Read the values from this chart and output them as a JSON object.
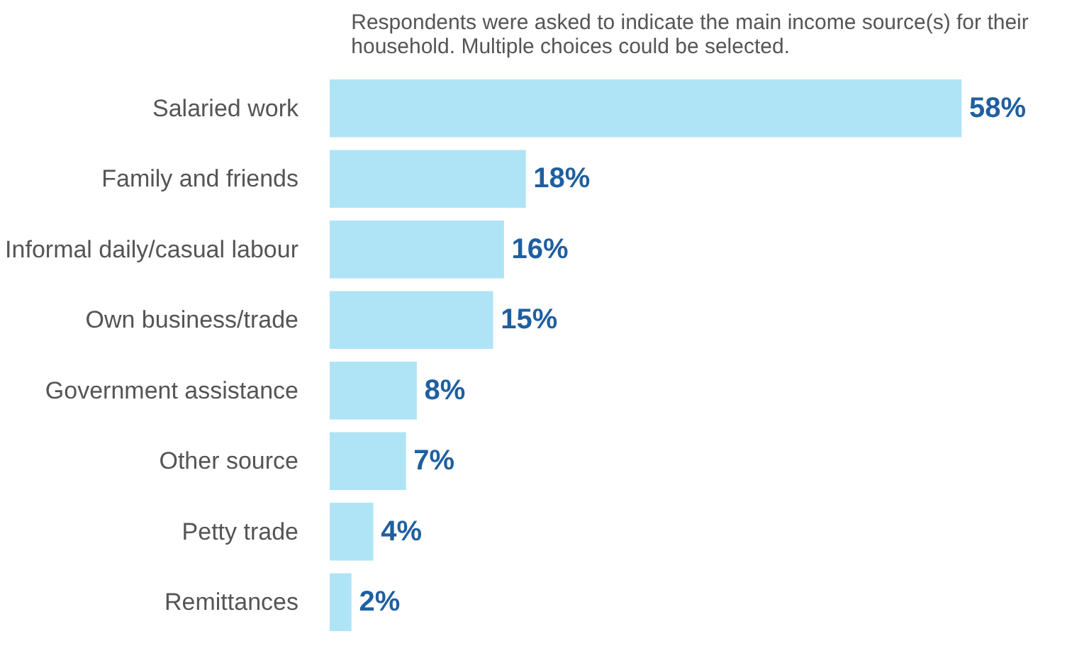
{
  "chart_data": {
    "type": "bar",
    "orientation": "horizontal",
    "title": "Respondents were asked to indicate the main income source(s) for their household. Multiple choices could be selected.",
    "categories": [
      "Salaried work",
      "Family and friends",
      "Informal daily/casual labour",
      "Own business/trade",
      "Government assistance",
      "Other source",
      "Petty trade",
      "Remittances"
    ],
    "values": [
      58,
      18,
      16,
      15,
      8,
      7,
      4,
      2
    ],
    "value_labels": [
      "58%",
      "18%",
      "16%",
      "15%",
      "8%",
      "7%",
      "4%",
      "2%"
    ],
    "color": "#aee4f5",
    "grid": false
  }
}
